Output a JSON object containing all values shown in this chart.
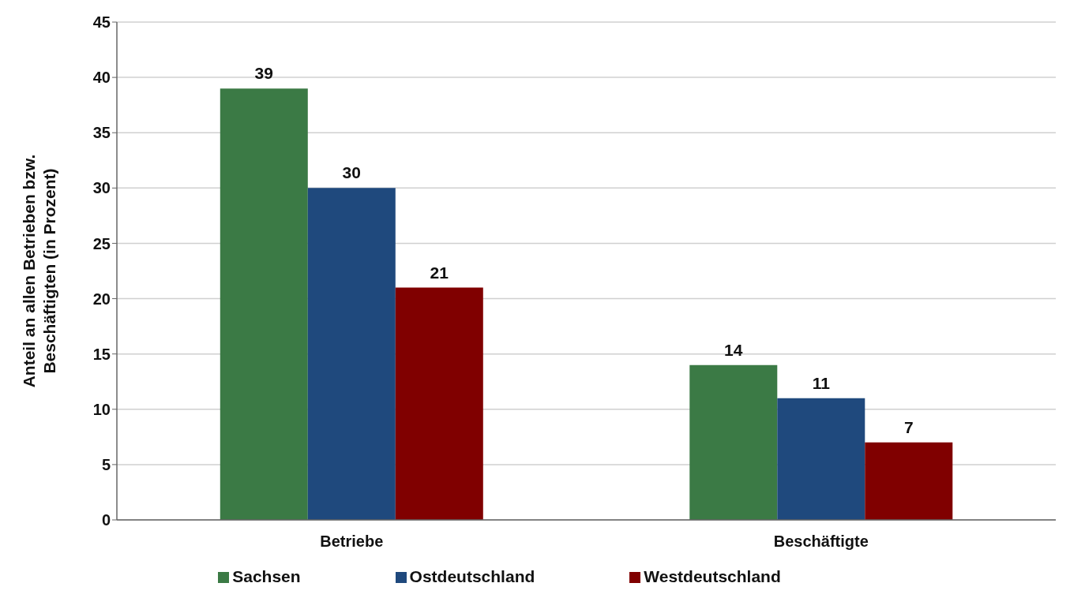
{
  "chart_data": {
    "type": "bar",
    "ylabel": "Anteil an allen Betrieben bzw. Beschäftigten (in Prozent)",
    "categories": [
      "Betriebe",
      "Beschäftigte"
    ],
    "series": [
      {
        "name": "Sachsen",
        "color": "#3b7a45",
        "values": [
          39,
          14
        ]
      },
      {
        "name": "Ostdeutschland",
        "color": "#1f497d",
        "values": [
          30,
          11
        ]
      },
      {
        "name": "Westdeutschland",
        "color": "#800000",
        "values": [
          21,
          7
        ]
      }
    ],
    "ylim": [
      0,
      45
    ],
    "yticks": [
      0,
      5,
      10,
      15,
      20,
      25,
      30,
      35,
      40,
      45
    ],
    "grid": "y",
    "legend": "bottom",
    "data_labels": true
  }
}
